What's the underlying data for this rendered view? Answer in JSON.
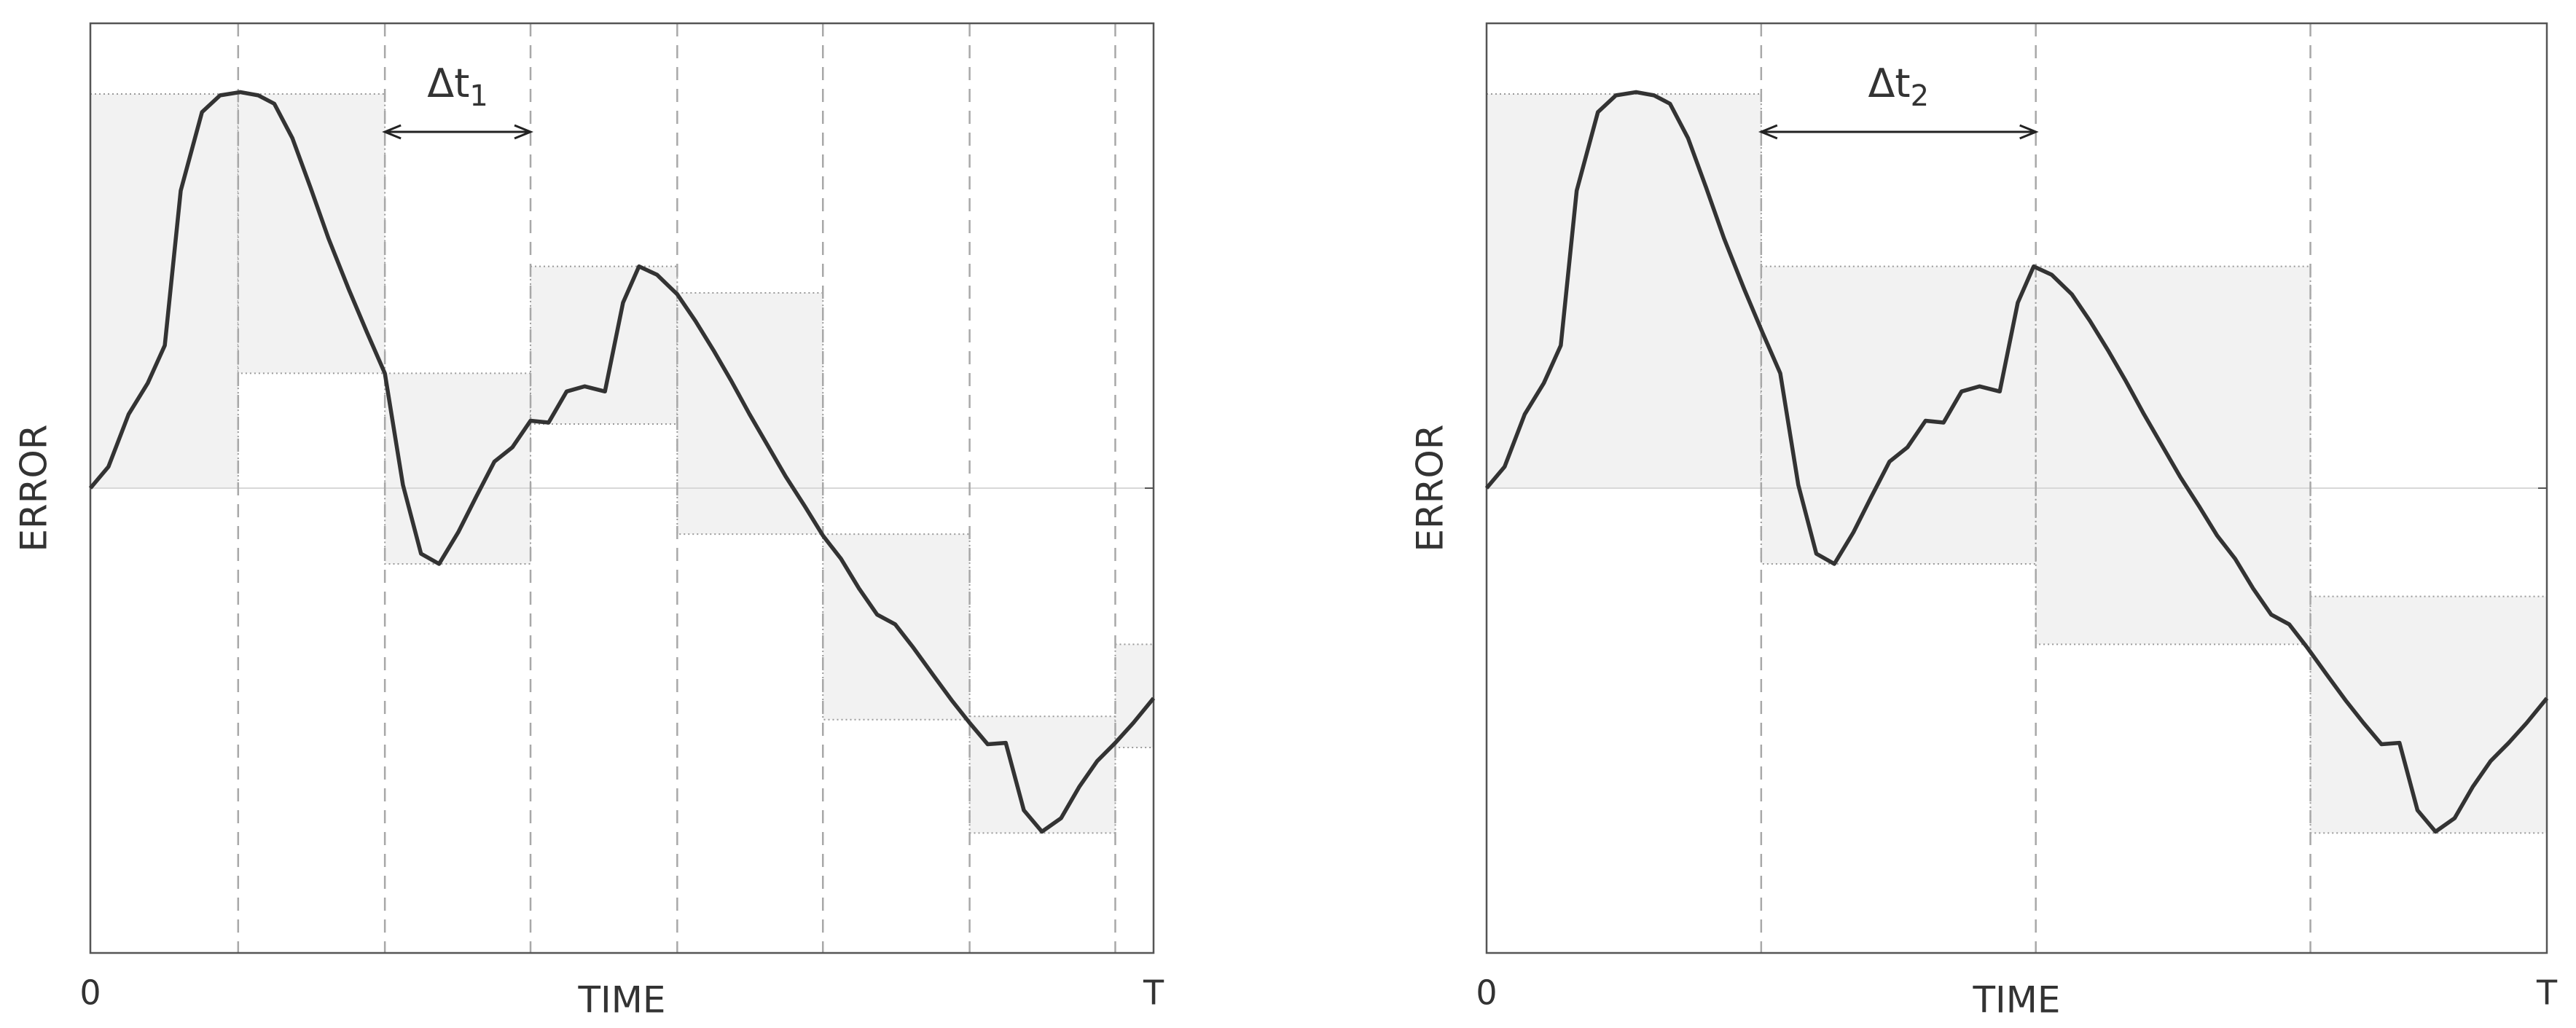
{
  "chart_data": [
    {
      "type": "line",
      "x_label": "TIME",
      "y_label": "ERROR",
      "xlim": [
        0,
        100
      ],
      "ylim": [
        -100,
        100
      ],
      "xticks": [
        0,
        {
          "value": 100,
          "label": "T"
        }
      ],
      "zero_line": true,
      "x": [
        0,
        1.7,
        3.6,
        5.4,
        7.0,
        8.5,
        10.5,
        12.2,
        14.1,
        15.8,
        17.3,
        19.0,
        20.7,
        22.4,
        24.3,
        26.0,
        27.7,
        29.4,
        31.1,
        32.8,
        34.6,
        36.3,
        38.0,
        39.7,
        41.4,
        43.1,
        44.8,
        46.5,
        48.4,
        50.1,
        51.6,
        53.3,
        55.2,
        56.9,
        58.6,
        60.3,
        62.0,
        63.7,
        65.4,
        67.2,
        68.9,
        70.6,
        72.3,
        74.0,
        75.7,
        77.4,
        79.3,
        81.0,
        82.7,
        84.4,
        86.1,
        87.8,
        89.5,
        91.3,
        93.0,
        94.7,
        96.4,
        98.1,
        100
      ],
      "series": [
        {
          "color": "#333333",
          "values": [
            0,
            4.6,
            15.9,
            22.6,
            30.7,
            64.0,
            80.9,
            84.5,
            85.2,
            84.5,
            82.7,
            75.3,
            64.7,
            53.7,
            42.8,
            33.6,
            24.7,
            0.7,
            -14.1,
            -16.3,
            -9.5,
            -1.8,
            5.7,
            8.8,
            14.5,
            14.1,
            20.8,
            21.9,
            20.8,
            39.9,
            47.7,
            45.9,
            41.7,
            36.0,
            29.7,
            23.0,
            15.9,
            9.2,
            2.5,
            -3.9,
            -10.2,
            -15.2,
            -21.6,
            -27.2,
            -29.3,
            -34.3,
            -40.3,
            -45.6,
            -50.5,
            -55.1,
            -54.8,
            -69.3,
            -73.9,
            -71.0,
            -64.3,
            -58.7,
            -54.8,
            -50.5,
            -45.2
          ]
        }
      ],
      "sample_times": [
        13.9,
        27.7,
        41.4,
        55.2,
        68.9,
        82.7,
        96.4
      ],
      "intervals": [
        {
          "low": 0,
          "high": 84.8
        },
        {
          "low": 24.7,
          "high": 84.8
        },
        {
          "low": -16.3,
          "high": 24.7
        },
        {
          "low": 13.8,
          "high": 47.7
        },
        {
          "low": -9.9,
          "high": 42.0
        },
        {
          "low": -49.8,
          "high": -9.9
        },
        {
          "low": -74.2,
          "high": -49.1
        },
        {
          "low": -55.8,
          "high": -33.6
        }
      ],
      "annotation": {
        "text": "Δt",
        "subscript": "1"
      }
    },
    {
      "type": "line",
      "x_label": "TIME",
      "y_label": "ERROR",
      "xlim": [
        0,
        100
      ],
      "ylim": [
        -100,
        100
      ],
      "xticks": [
        0,
        {
          "value": 100,
          "label": "T"
        }
      ],
      "zero_line": true,
      "x": [
        0,
        1.7,
        3.6,
        5.4,
        7.0,
        8.5,
        10.5,
        12.2,
        14.1,
        15.8,
        17.3,
        19.0,
        20.7,
        22.4,
        24.3,
        26.0,
        27.7,
        29.4,
        31.1,
        32.8,
        34.6,
        36.3,
        38.0,
        39.7,
        41.4,
        43.1,
        44.8,
        46.5,
        48.4,
        50.1,
        51.6,
        53.3,
        55.2,
        56.9,
        58.6,
        60.3,
        62.0,
        63.7,
        65.4,
        67.2,
        68.9,
        70.6,
        72.3,
        74.0,
        75.7,
        77.4,
        79.3,
        81.0,
        82.7,
        84.4,
        86.1,
        87.8,
        89.5,
        91.3,
        93.0,
        94.7,
        96.4,
        98.1,
        100
      ],
      "series": [
        {
          "color": "#333333",
          "values": [
            0,
            4.6,
            15.9,
            22.6,
            30.7,
            64.0,
            80.9,
            84.5,
            85.2,
            84.5,
            82.7,
            75.3,
            64.7,
            53.7,
            42.8,
            33.6,
            24.7,
            0.7,
            -14.1,
            -16.3,
            -9.5,
            -1.8,
            5.7,
            8.8,
            14.5,
            14.1,
            20.8,
            21.9,
            20.8,
            39.9,
            47.7,
            45.9,
            41.7,
            36.0,
            29.7,
            23.0,
            15.9,
            9.2,
            2.5,
            -3.9,
            -10.2,
            -15.2,
            -21.6,
            -27.2,
            -29.3,
            -34.3,
            -40.3,
            -45.6,
            -50.5,
            -55.1,
            -54.8,
            -69.3,
            -73.9,
            -71.0,
            -64.3,
            -58.7,
            -54.8,
            -50.5,
            -45.2
          ]
        }
      ],
      "sample_times": [
        25.9,
        51.8,
        77.7
      ],
      "intervals": [
        {
          "low": 0,
          "high": 84.8
        },
        {
          "low": -16.3,
          "high": 47.7
        },
        {
          "low": -33.6,
          "high": 47.7
        },
        {
          "low": -74.2,
          "high": -23.3
        }
      ],
      "annotation": {
        "text": "Δt",
        "subscript": "2"
      }
    }
  ]
}
